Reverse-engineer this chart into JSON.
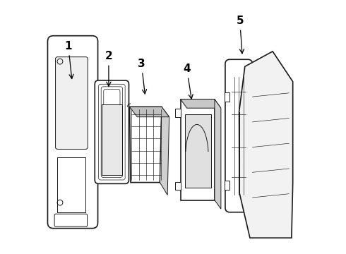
{
  "background_color": "#ffffff",
  "line_color": "#1a1a1a",
  "annotation_color": "#000000",
  "annotations": [
    {
      "label": "1",
      "lpos": [
        0.085,
        0.82
      ],
      "aend": [
        0.1,
        0.68
      ]
    },
    {
      "label": "2",
      "lpos": [
        0.245,
        0.78
      ],
      "aend": [
        0.245,
        0.65
      ]
    },
    {
      "label": "3",
      "lpos": [
        0.375,
        0.75
      ],
      "aend": [
        0.39,
        0.62
      ]
    },
    {
      "label": "4",
      "lpos": [
        0.555,
        0.73
      ],
      "aend": [
        0.575,
        0.6
      ]
    },
    {
      "label": "5",
      "lpos": [
        0.765,
        0.92
      ],
      "aend": [
        0.775,
        0.78
      ]
    }
  ]
}
